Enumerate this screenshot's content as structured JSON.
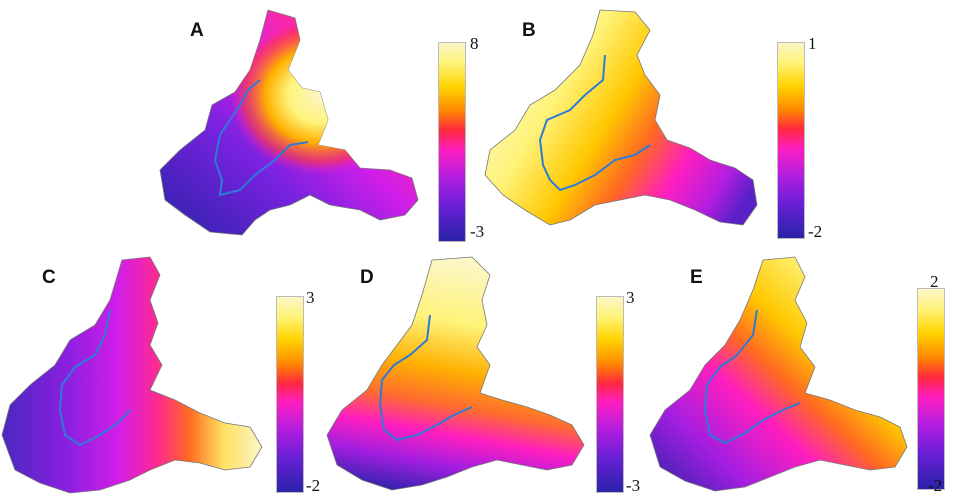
{
  "panels": [
    {
      "letter": "A",
      "scale_max": "8",
      "scale_min": "-3"
    },
    {
      "letter": "B",
      "scale_max": "1",
      "scale_min": "-2"
    },
    {
      "letter": "C",
      "scale_max": "3",
      "scale_min": "-2"
    },
    {
      "letter": "D",
      "scale_max": "3",
      "scale_min": "-3"
    },
    {
      "letter": "E",
      "scale_max": "2",
      "scale_min": "-2"
    }
  ],
  "colors": {
    "low": "#2a23a8",
    "mid_low": "#ff1ec0",
    "mid_high": "#ff8a00",
    "high": "#fbf6c6",
    "river": "#2c7bd9"
  }
}
